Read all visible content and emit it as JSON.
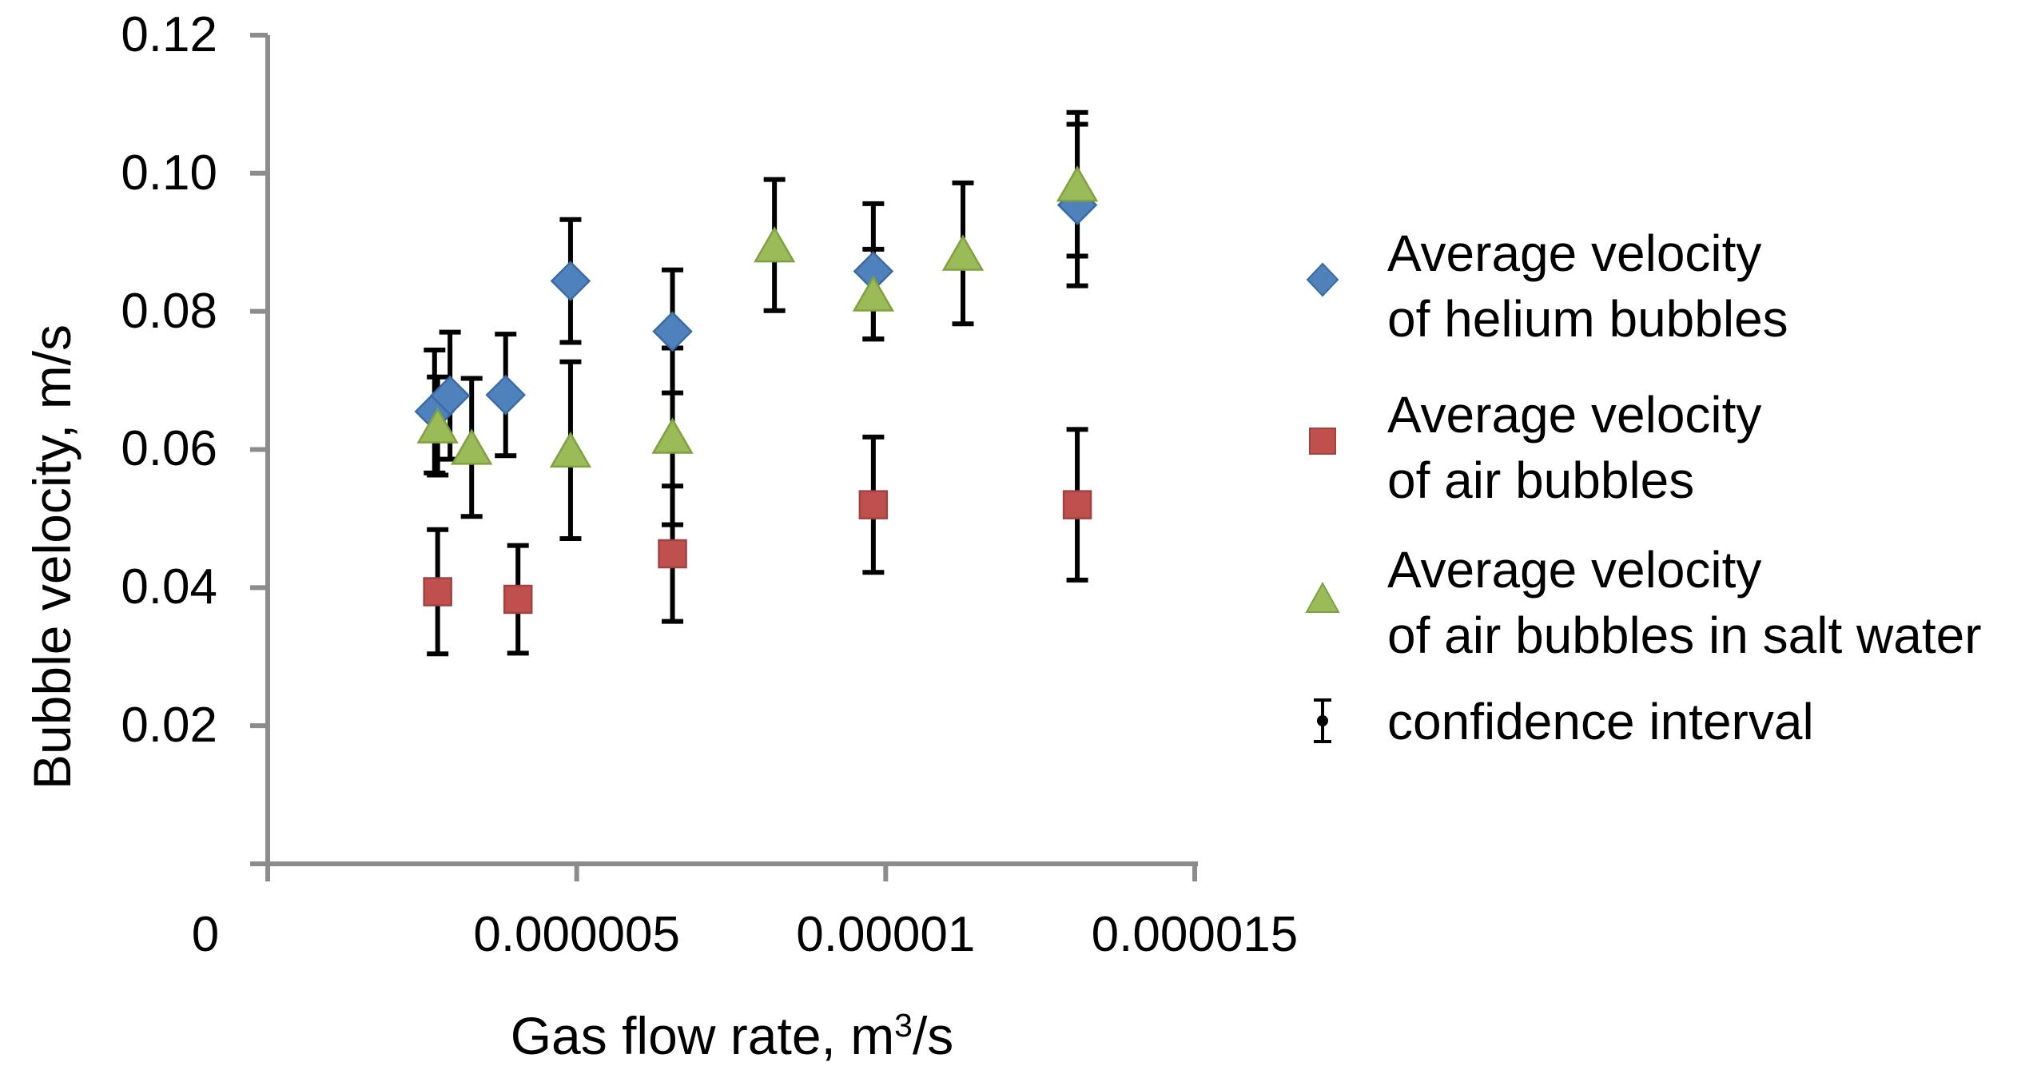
{
  "figure": {
    "background": "#ffffff",
    "axis_color": "#8C8C8C",
    "error_bar_color": "#000000",
    "text_color": "#000000"
  },
  "y_axis": {
    "title": "Bubble velocity, m/s",
    "tick_labels": [
      "0.12",
      "0.10",
      "0.08",
      "0.06",
      "0.04",
      "0.02"
    ],
    "tick_values": [
      0.12,
      0.1,
      0.08,
      0.06,
      0.04,
      0.02
    ]
  },
  "x_axis": {
    "title_prefix": "Gas flow rate, m",
    "title_sup": "3",
    "title_suffix": "/s",
    "tick_labels": [
      "0",
      "0.000005",
      "0.00001",
      "0.000015"
    ],
    "tick_values": [
      0,
      5e-06,
      1e-05,
      1.5e-05
    ]
  },
  "legend": {
    "items": [
      {
        "marker": "diamond",
        "color": "#4F81BD",
        "line1": "Average velocity",
        "line2": "of helium bubbles"
      },
      {
        "marker": "square",
        "color": "#C0504D",
        "line1": "Average velocity",
        "line2": "of air bubbles"
      },
      {
        "marker": "triangle",
        "color": "#9BBB59",
        "line1": "Average velocity",
        "line2": "of air bubbles in salt water"
      },
      {
        "marker": "error-bar",
        "color": "#000000",
        "line1": "confidence interval",
        "line2": ""
      }
    ]
  },
  "chart_data": {
    "type": "scatter",
    "title": "",
    "xlabel": "Gas flow rate, m³/s",
    "ylabel": "Bubble velocity, m/s",
    "xlim": [
      0,
      1.5e-05
    ],
    "ylim": [
      0,
      0.12
    ],
    "grid": false,
    "legend_position": "right",
    "error_bars_label": "confidence interval",
    "series": [
      {
        "id": "helium",
        "name": "Average velocity of helium bubbles",
        "marker": "diamond",
        "color": "#4F81BD",
        "edge_color": "#3A6BA5",
        "points": [
          {
            "x": 2.7e-06,
            "y": 0.0655,
            "ci": 0.0089
          },
          {
            "x": 2.95e-06,
            "y": 0.0678,
            "ci": 0.0092
          },
          {
            "x": 3.85e-06,
            "y": 0.0679,
            "ci": 0.0088
          },
          {
            "x": 4.9e-06,
            "y": 0.0844,
            "ci": 0.0089
          },
          {
            "x": 6.55e-06,
            "y": 0.0771,
            "ci": 0.0089
          },
          {
            "x": 9.8e-06,
            "y": 0.0858,
            "ci": 0.0098
          },
          {
            "x": 1.31e-05,
            "y": 0.0954,
            "ci": 0.0117
          }
        ]
      },
      {
        "id": "air",
        "name": "Average velocity of air bubbles",
        "marker": "square",
        "color": "#C0504D",
        "edge_color": "#9E4340",
        "points": [
          {
            "x": 2.75e-06,
            "y": 0.0394,
            "ci": 0.009
          },
          {
            "x": 4.05e-06,
            "y": 0.0383,
            "ci": 0.0078
          },
          {
            "x": 6.55e-06,
            "y": 0.0449,
            "ci": 0.0098
          },
          {
            "x": 9.8e-06,
            "y": 0.052,
            "ci": 0.0098
          },
          {
            "x": 1.31e-05,
            "y": 0.052,
            "ci": 0.0109
          }
        ]
      },
      {
        "id": "salt_water",
        "name": "Average velocity of air bubbles in salt water",
        "marker": "triangle",
        "color": "#9BBB59",
        "edge_color": "#7FA13F",
        "points": [
          {
            "x": 2.75e-06,
            "y": 0.0634,
            "ci": 0.0071
          },
          {
            "x": 3.3e-06,
            "y": 0.0603,
            "ci": 0.01
          },
          {
            "x": 4.9e-06,
            "y": 0.0599,
            "ci": 0.0128
          },
          {
            "x": 6.55e-06,
            "y": 0.0619,
            "ci": 0.0128
          },
          {
            "x": 8.2e-06,
            "y": 0.0896,
            "ci": 0.0095
          },
          {
            "x": 9.8e-06,
            "y": 0.0825,
            "ci": 0.0065
          },
          {
            "x": 1.125e-05,
            "y": 0.0884,
            "ci": 0.0102
          },
          {
            "x": 1.31e-05,
            "y": 0.0984,
            "ci": 0.0104
          }
        ]
      }
    ]
  }
}
